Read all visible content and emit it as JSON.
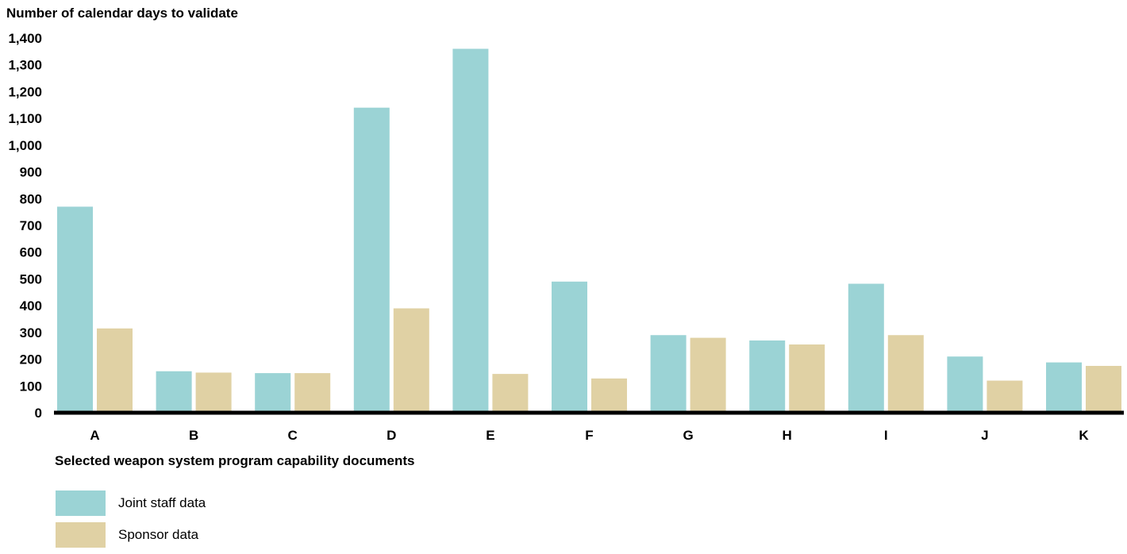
{
  "chart_data": {
    "type": "bar",
    "ylabel": "Number of calendar days to validate",
    "xlabel": "Selected weapon system program capability documents",
    "categories": [
      "A",
      "B",
      "C",
      "D",
      "E",
      "F",
      "G",
      "H",
      "I",
      "J",
      "K"
    ],
    "series": [
      {
        "name": "Joint staff data",
        "color": "#9bd3d5",
        "values": [
          770,
          155,
          148,
          1140,
          1360,
          490,
          290,
          270,
          482,
          210,
          188
        ]
      },
      {
        "name": "Sponsor data",
        "color": "#e0d1a4",
        "values": [
          315,
          150,
          148,
          390,
          145,
          128,
          280,
          255,
          290,
          120,
          175
        ]
      }
    ],
    "ylim": [
      0,
      1400
    ],
    "yticks": [
      "0",
      "100",
      "200",
      "300",
      "400",
      "500",
      "600",
      "700",
      "800",
      "900",
      "1,000",
      "1,100",
      "1,200",
      "1,300",
      "1,400"
    ],
    "grid": false,
    "legend": "bottom-left"
  }
}
